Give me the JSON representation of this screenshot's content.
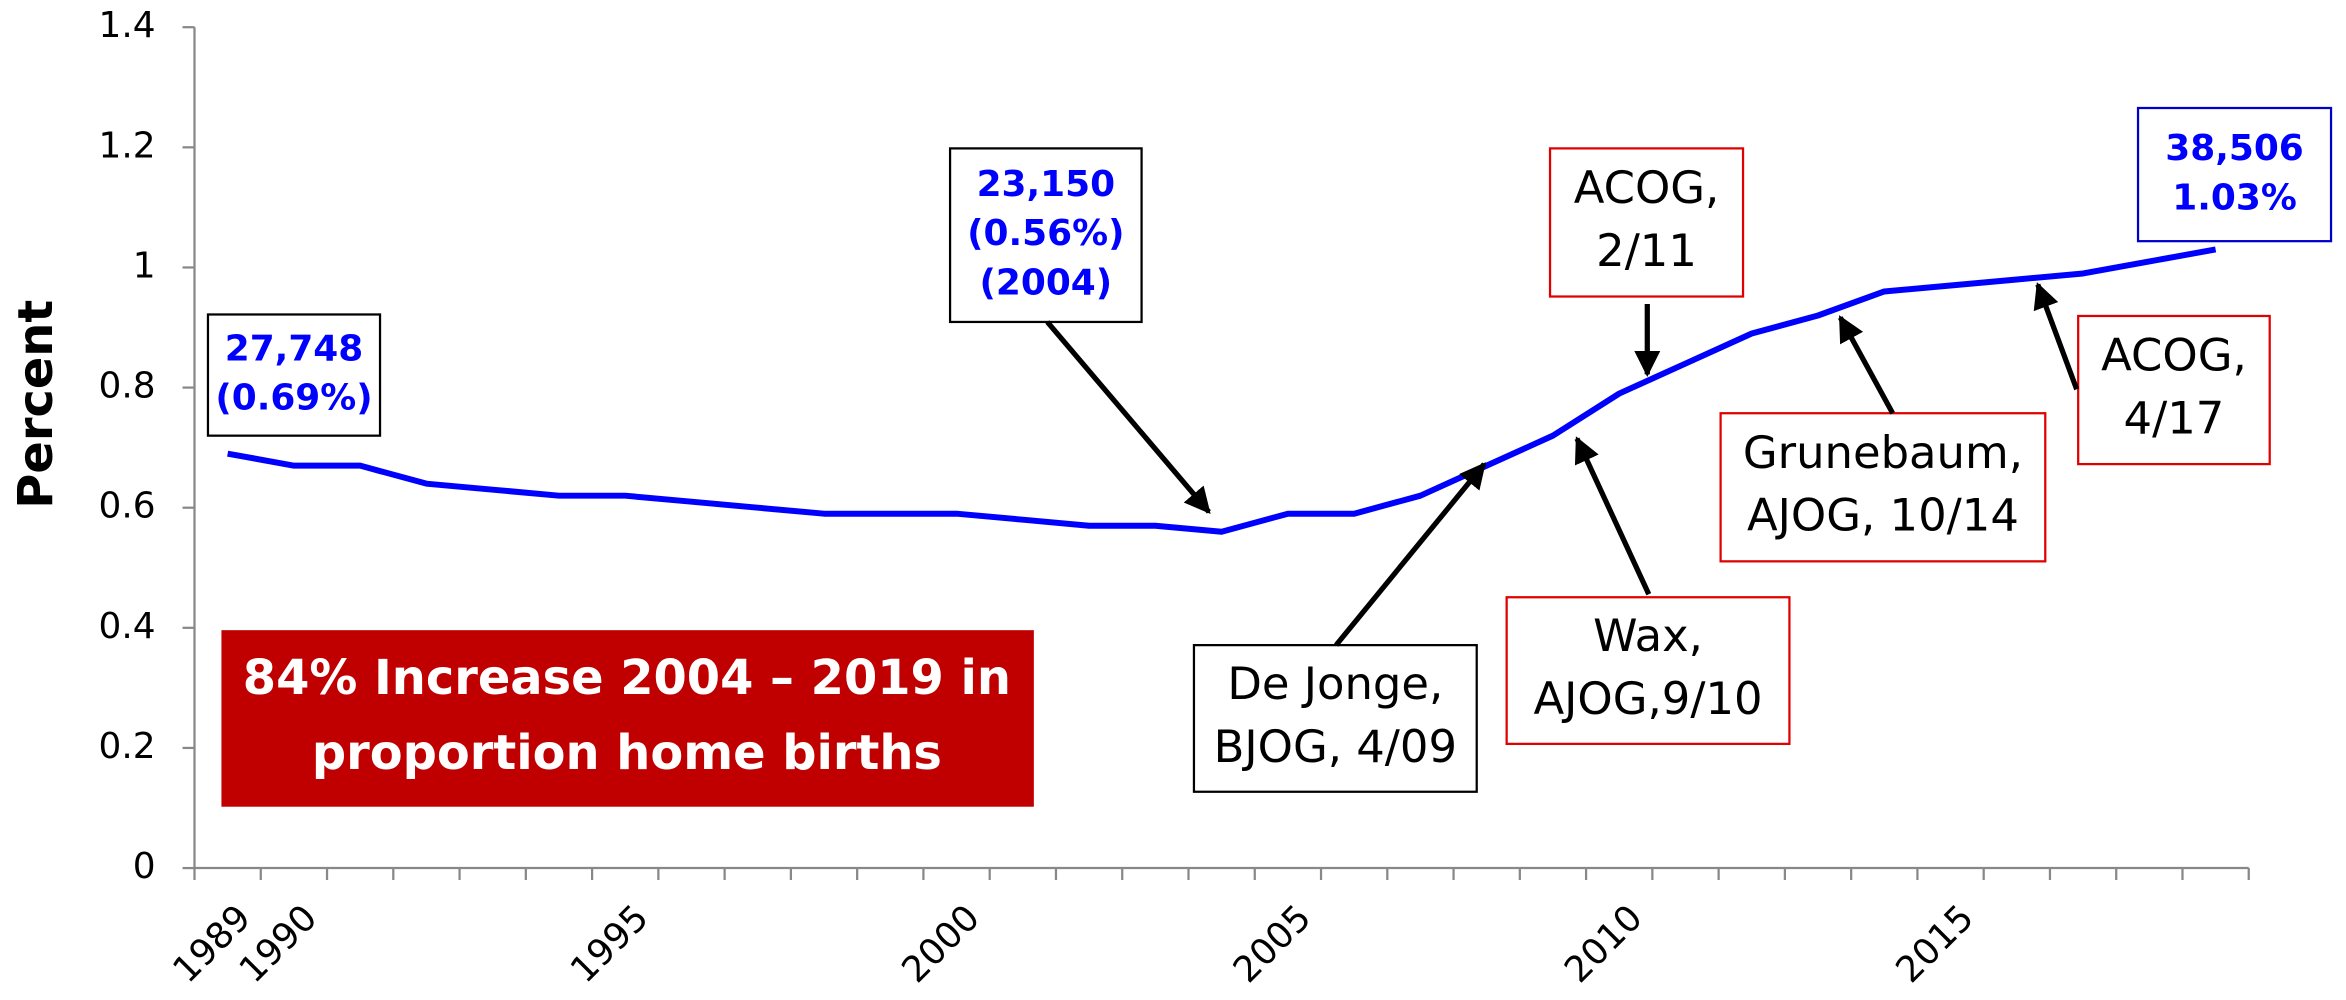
{
  "chart_data": {
    "type": "line",
    "y_label": "Percent",
    "x": [
      1989,
      1990,
      1991,
      1992,
      1993,
      1994,
      1995,
      1996,
      1997,
      1998,
      1999,
      2000,
      2001,
      2002,
      2003,
      2004,
      2005,
      2006,
      2007,
      2008,
      2009,
      2010,
      2011,
      2012,
      2013,
      2014,
      2015,
      2016,
      2017,
      2018,
      2019
    ],
    "series": [
      {
        "color": "#0000ff",
        "values": [
          0.69,
          0.67,
          0.67,
          0.64,
          0.63,
          0.62,
          0.62,
          0.61,
          0.6,
          0.59,
          0.59,
          0.59,
          0.58,
          0.57,
          0.57,
          0.56,
          0.59,
          0.59,
          0.62,
          0.67,
          0.72,
          0.79,
          0.84,
          0.89,
          0.92,
          0.96,
          0.97,
          0.98,
          0.99,
          1.01,
          1.03
        ]
      }
    ],
    "xlim": [
      1988.5,
      2019.5
    ],
    "xticks": [
      1989,
      1990,
      1995,
      2000,
      2005,
      2010,
      2015
    ],
    "ylim": [
      0,
      1.4
    ],
    "yticks": [
      0,
      0.2,
      0.4,
      0.6,
      0.8,
      1,
      1.2,
      1.4
    ],
    "banner": [
      "84% Increase 2004 – 2019 in",
      "proportion home births"
    ],
    "annotations": [
      {
        "lines": [
          "27,748",
          "(0.69%)"
        ]
      },
      {
        "lines": [
          "23,150",
          "(0.56%)",
          "(2004)"
        ]
      },
      {
        "lines": [
          "De Jonge,",
          "BJOG, 4/09"
        ]
      },
      {
        "lines": [
          "Wax,",
          "AJOG,9/10"
        ]
      },
      {
        "lines": [
          "ACOG,",
          "2/11"
        ]
      },
      {
        "lines": [
          "Grunebaum,",
          "AJOG, 10/14"
        ]
      },
      {
        "lines": [
          "ACOG,",
          " 4/17"
        ]
      },
      {
        "lines": [
          "38,506",
          "1.03%"
        ]
      }
    ]
  }
}
